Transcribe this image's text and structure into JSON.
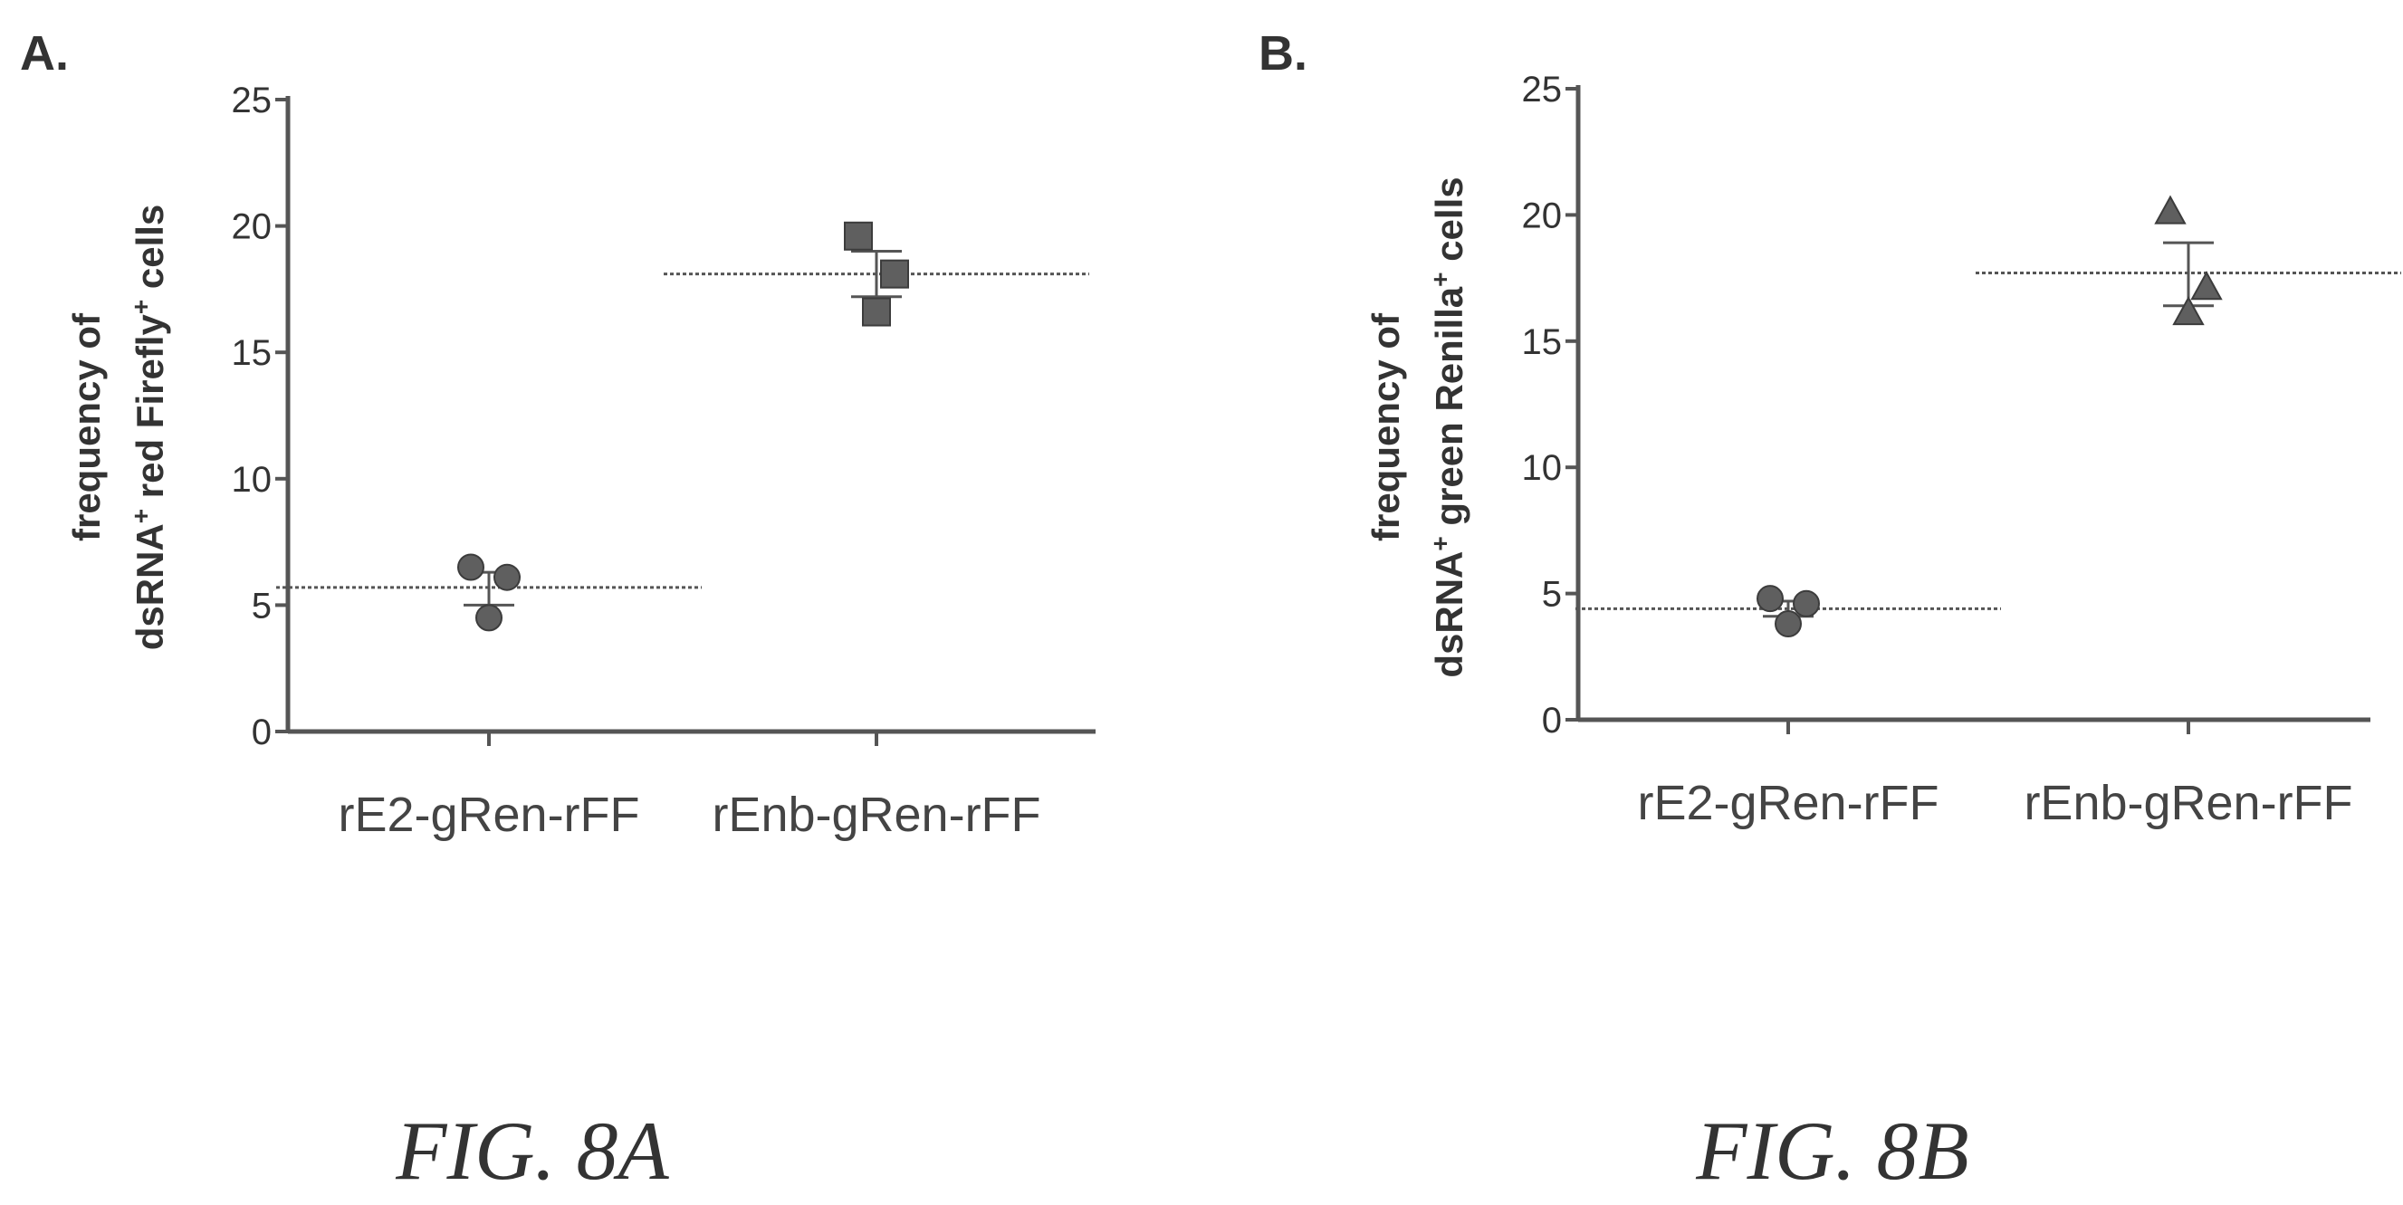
{
  "chart_data": [
    {
      "type": "scatter",
      "panel_label": "A.",
      "figure_caption": "FIG. 8A",
      "ylabel_line1": "frequency of",
      "ylabel_line2": "dsRNA+ red Firefly+ cells",
      "ylabel_line2_segments": [
        "dsRNA",
        "+",
        " red Firefly",
        "+",
        " cells"
      ],
      "xlabel": "",
      "categories": [
        "rE2-gRen-rFF",
        "rEnb-gRen-rFF"
      ],
      "ylim": [
        0,
        25
      ],
      "yticks": [
        0,
        5,
        10,
        15,
        20,
        25
      ],
      "marker": "circle/square",
      "color": "#5f5f5f",
      "series": [
        {
          "category": "rE2-gRen-rFF",
          "marker": "circle",
          "points": [
            6.5,
            6.1,
            4.5
          ],
          "mean": 5.7,
          "error": [
            5.0,
            6.3
          ]
        },
        {
          "category": "rEnb-gRen-rFF",
          "marker": "square",
          "points": [
            19.6,
            18.1,
            16.6
          ],
          "mean": 18.1,
          "error": [
            17.2,
            19.0
          ]
        }
      ]
    },
    {
      "type": "scatter",
      "panel_label": "B.",
      "figure_caption": "FIG. 8B",
      "ylabel_line1": "frequency of",
      "ylabel_line2": "dsRNA+ green Renilla+ cells",
      "ylabel_line2_segments": [
        "dsRNA",
        "+",
        " green Renilla",
        "+",
        " cells"
      ],
      "xlabel": "",
      "categories": [
        "rE2-gRen-rFF",
        "rEnb-gRen-rFF"
      ],
      "ylim": [
        0,
        25
      ],
      "yticks": [
        0,
        5,
        10,
        15,
        20,
        25
      ],
      "marker": "circle/triangle",
      "color": "#5f5f5f",
      "series": [
        {
          "category": "rE2-gRen-rFF",
          "marker": "circle",
          "points": [
            4.8,
            4.6,
            3.8
          ],
          "mean": 4.4,
          "error": [
            4.1,
            4.7
          ]
        },
        {
          "category": "rEnb-gRen-rFF",
          "marker": "triangle",
          "points": [
            20.1,
            17.1,
            16.1
          ],
          "mean": 17.7,
          "error": [
            16.4,
            18.9
          ]
        }
      ]
    }
  ]
}
